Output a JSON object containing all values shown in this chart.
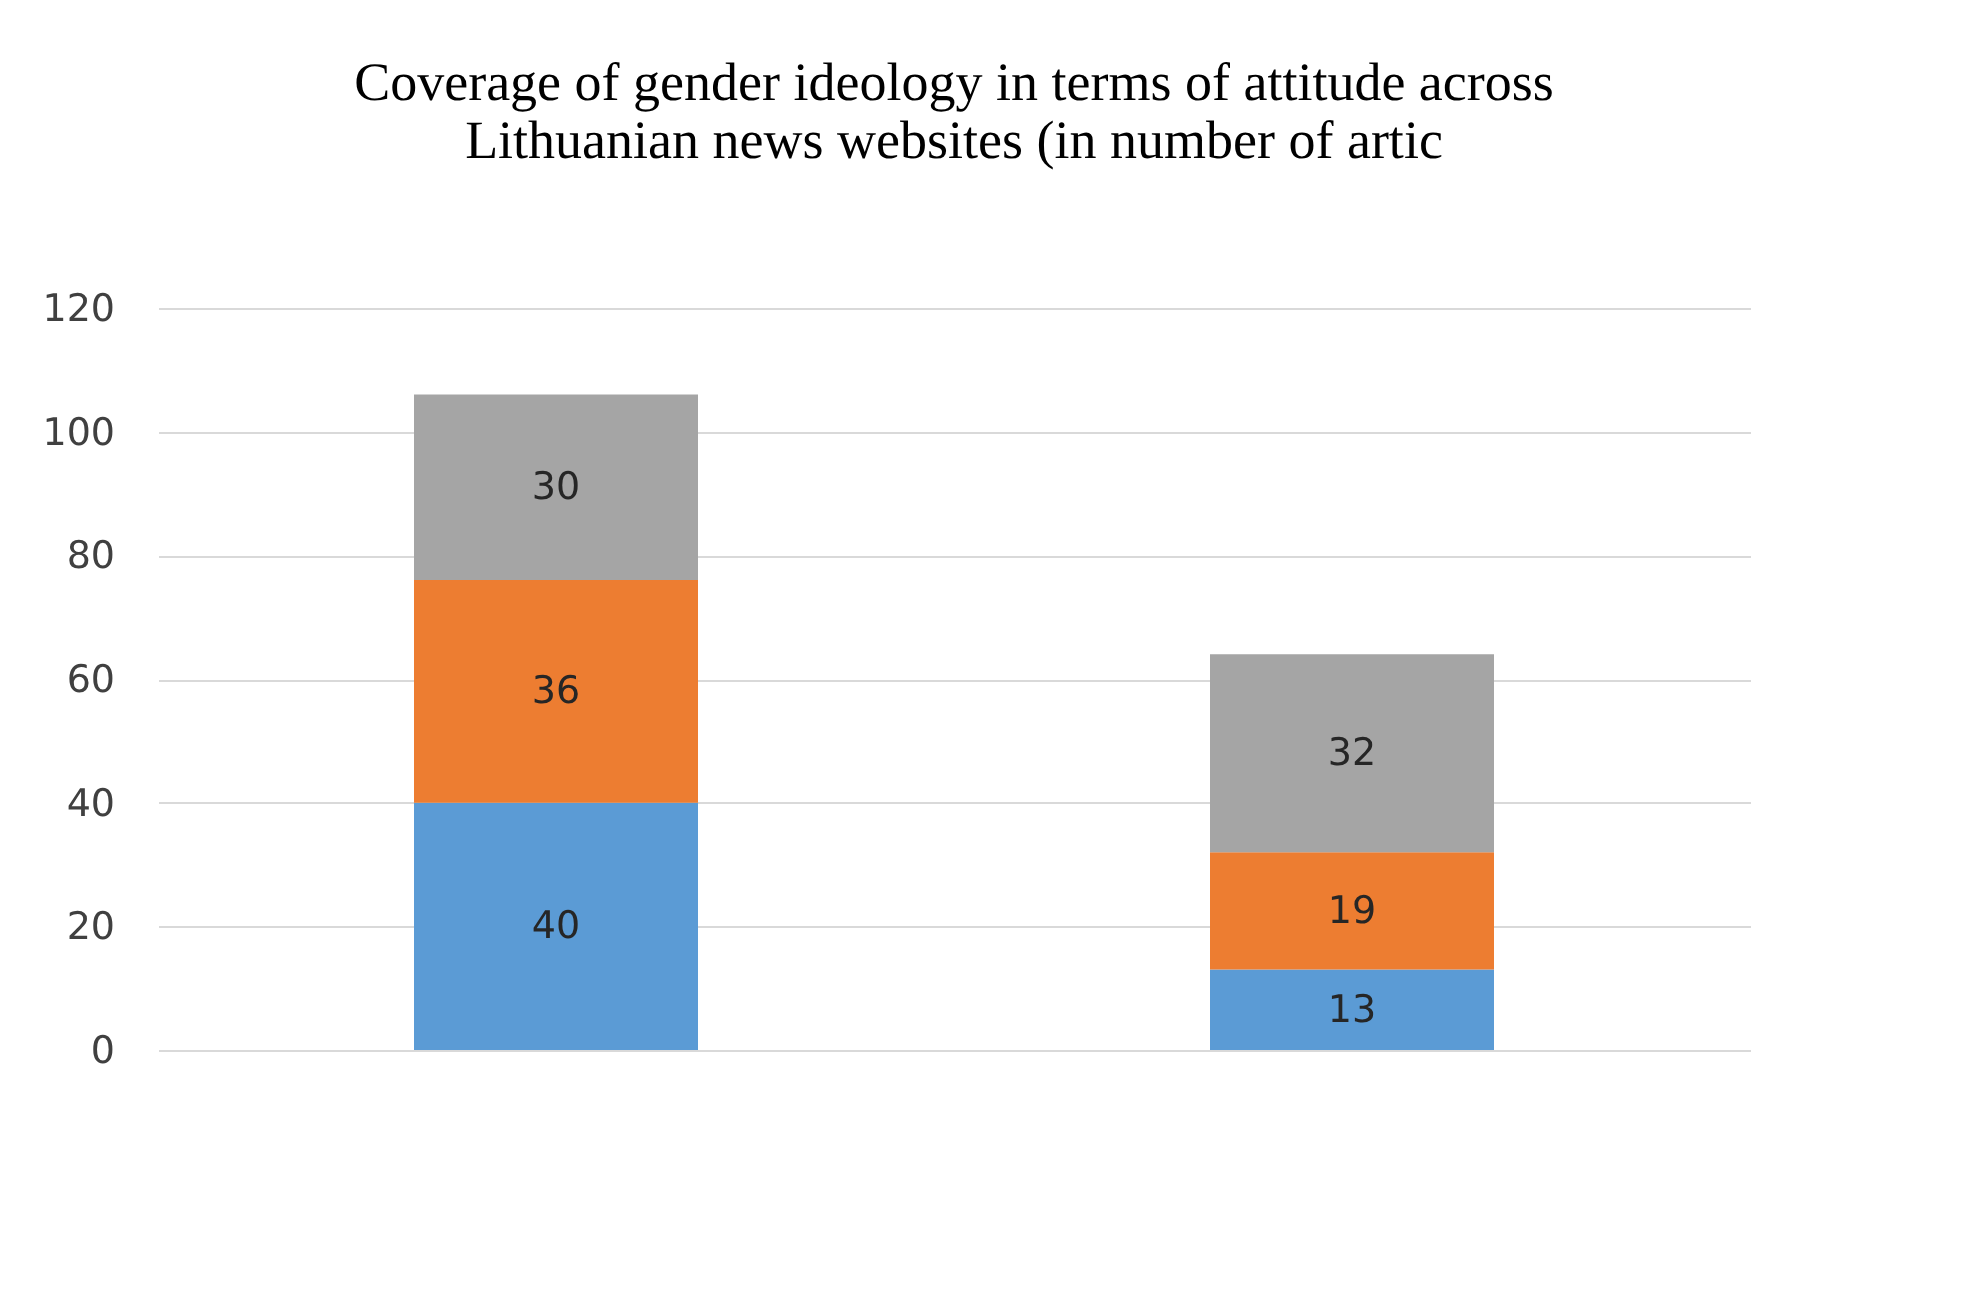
{
  "chart_data": {
    "type": "bar",
    "title": [
      "Coverage of gender ideology in terms of attitude across",
      "Lithuanian news websites (in number of artic"
    ],
    "categories": [
      null,
      null
    ],
    "series": [
      {
        "color": "#5b9bd5",
        "values": [
          40,
          13
        ]
      },
      {
        "color": "#ed7d31",
        "values": [
          36,
          19
        ]
      },
      {
        "color": "#a5a5a5",
        "values": [
          30,
          32
        ]
      }
    ],
    "stacked": true,
    "data_labels": true,
    "ylim": [
      0,
      120
    ],
    "yticks": [
      0,
      20,
      40,
      60,
      80,
      100,
      120
    ],
    "grid": "y",
    "tick_labels": "y"
  }
}
